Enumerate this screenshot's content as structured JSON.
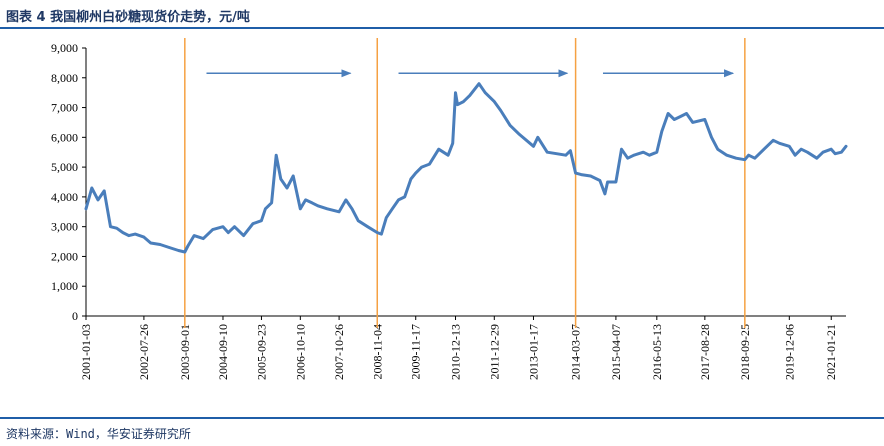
{
  "figure": {
    "title": "图表 4  我国柳州白砂糖现货价走势，元/吨",
    "source": "资料来源：Wind，华安证券研究所"
  },
  "chart_data": {
    "type": "line",
    "ylim": [
      0,
      9000
    ],
    "y_ticks": [
      "0",
      "1,000",
      "2,000",
      "3,000",
      "4,000",
      "5,000",
      "6,000",
      "7,000",
      "8,000",
      "9,000"
    ],
    "x_ticks": [
      "2001-01-03",
      "2002-07-26",
      "2003-09-01",
      "2004-09-10",
      "2005-09-23",
      "2006-10-10",
      "2007-10-26",
      "2008-11-04",
      "2009-11-17",
      "2010-12-13",
      "2011-12-29",
      "2013-01-17",
      "2014-03-07",
      "2015-04-07",
      "2016-05-13",
      "2017-08-28",
      "2018-09-25",
      "2019-12-06",
      "2021-01-21"
    ],
    "grid": false,
    "legend": "none",
    "colors": {
      "series": "#4a7ebb",
      "markers": "#f5a142",
      "arrows": "#4a7ebb"
    },
    "series": [
      {
        "x": [
          "2001-01-03",
          "2001-03-01",
          "2001-05-01",
          "2001-07-01",
          "2001-09-01",
          "2001-11-01",
          "2002-01-01",
          "2002-03-01",
          "2002-05-01",
          "2002-07-26",
          "2002-10-01",
          "2003-01-01",
          "2003-04-01",
          "2003-07-01",
          "2003-09-01",
          "2003-10-01",
          "2003-12-01",
          "2004-03-01",
          "2004-06-01",
          "2004-09-10",
          "2004-11-01",
          "2005-01-01",
          "2005-04-01",
          "2005-07-01",
          "2005-09-23",
          "2005-11-01",
          "2006-01-01",
          "2006-02-15",
          "2006-04-01",
          "2006-06-01",
          "2006-08-01",
          "2006-10-10",
          "2006-12-01",
          "2007-02-01",
          "2007-04-01",
          "2007-07-01",
          "2007-10-26",
          "2008-01-01",
          "2008-03-01",
          "2008-05-01",
          "2008-08-01",
          "2008-11-04",
          "2008-12-15",
          "2009-02-01",
          "2009-04-01",
          "2009-06-01",
          "2009-08-01",
          "2009-10-01",
          "2009-11-17",
          "2010-01-15",
          "2010-04-01",
          "2010-07-01",
          "2010-10-01",
          "2010-11-15",
          "2010-12-13",
          "2011-01-01",
          "2011-03-01",
          "2011-05-01",
          "2011-08-01",
          "2011-10-01",
          "2011-12-29",
          "2012-03-01",
          "2012-06-01",
          "2012-09-01",
          "2013-01-17",
          "2013-03-01",
          "2013-06-01",
          "2013-09-01",
          "2013-12-01",
          "2014-01-15",
          "2014-03-07",
          "2014-05-01",
          "2014-08-01",
          "2014-11-01",
          "2014-12-20",
          "2015-01-15",
          "2015-04-07",
          "2015-06-01",
          "2015-08-01",
          "2015-10-01",
          "2016-01-01",
          "2016-03-01",
          "2016-05-13",
          "2016-07-01",
          "2016-09-01",
          "2016-11-01",
          "2017-01-01",
          "2017-03-01",
          "2017-05-01",
          "2017-08-28",
          "2017-11-01",
          "2018-01-01",
          "2018-04-01",
          "2018-07-01",
          "2018-09-25",
          "2018-11-01",
          "2019-01-01",
          "2019-04-01",
          "2019-07-01",
          "2019-09-01",
          "2019-12-06",
          "2020-02-01",
          "2020-04-01",
          "2020-06-01",
          "2020-09-01",
          "2020-11-01",
          "2021-01-21",
          "2021-03-01",
          "2021-05-01",
          "2021-06-15"
        ],
        "values": [
          3600,
          4300,
          3900,
          4200,
          3000,
          2950,
          2800,
          2700,
          2750,
          2650,
          2450,
          2400,
          2300,
          2200,
          2150,
          2350,
          2700,
          2600,
          2900,
          3000,
          2800,
          3000,
          2700,
          3100,
          3200,
          3600,
          3800,
          5400,
          4600,
          4300,
          4700,
          3600,
          3900,
          3800,
          3700,
          3600,
          3500,
          3900,
          3600,
          3200,
          3000,
          2800,
          2750,
          3300,
          3600,
          3900,
          4000,
          4600,
          4800,
          5000,
          5100,
          5600,
          5400,
          5800,
          7500,
          7100,
          7200,
          7400,
          7800,
          7500,
          7200,
          6900,
          6400,
          6100,
          5700,
          6000,
          5500,
          5450,
          5400,
          5550,
          4800,
          4750,
          4700,
          4550,
          4100,
          4500,
          4500,
          5600,
          5300,
          5400,
          5500,
          5400,
          5500,
          6200,
          6800,
          6600,
          6700,
          6800,
          6500,
          6600,
          6000,
          5600,
          5400,
          5300,
          5250,
          5400,
          5300,
          5600,
          5900,
          5800,
          5700,
          5400,
          5600,
          5500,
          5300,
          5500,
          5600,
          5450,
          5500,
          5700
        ]
      }
    ],
    "vertical_markers": [
      "2003-09-01",
      "2008-11-04",
      "2014-03-07",
      "2018-09-25"
    ],
    "arrows": [
      {
        "from": "2004-04-01",
        "to": "2008-02-15",
        "y": 8150
      },
      {
        "from": "2009-06-01",
        "to": "2013-12-15",
        "y": 8150
      },
      {
        "from": "2014-12-01",
        "to": "2018-06-01",
        "y": 8150
      }
    ]
  }
}
